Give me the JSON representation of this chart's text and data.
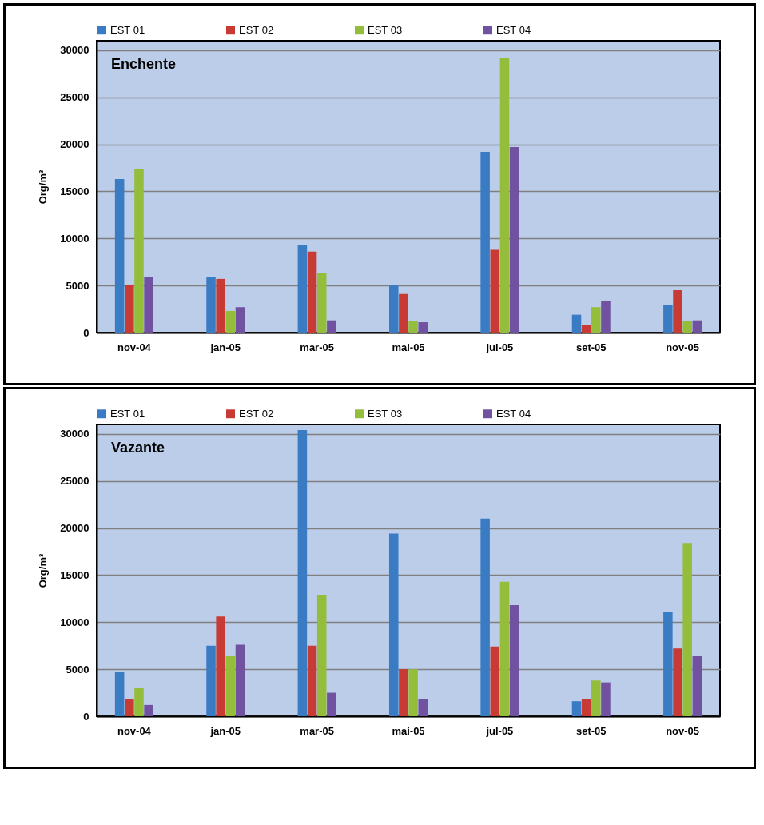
{
  "chart_data": [
    {
      "type": "bar",
      "title": "Enchente",
      "ylabel": "Org/m³",
      "categories": [
        "nov-04",
        "jan-05",
        "mar-05",
        "mai-05",
        "jul-05",
        "set-05",
        "nov-05"
      ],
      "series": [
        {
          "name": "EST 01",
          "color": "#3a7cc4",
          "values": [
            16300,
            5900,
            9300,
            5000,
            19200,
            1900,
            2900
          ]
        },
        {
          "name": "EST 02",
          "color": "#c83a34",
          "values": [
            5100,
            5700,
            8600,
            4100,
            8800,
            800,
            4500
          ]
        },
        {
          "name": "EST 03",
          "color": "#94bd3c",
          "values": [
            17400,
            2300,
            6300,
            1200,
            29200,
            2700,
            1200
          ]
        },
        {
          "name": "EST 04",
          "color": "#7152a0",
          "values": [
            5900,
            2700,
            1300,
            1100,
            19700,
            3400,
            1300
          ]
        }
      ],
      "ylim": [
        0,
        31000
      ],
      "yticks": [
        0,
        5000,
        10000,
        15000,
        20000,
        25000,
        30000
      ],
      "grid": "y",
      "legend": "top"
    },
    {
      "type": "bar",
      "title": "Vazante",
      "ylabel": "Org/m³",
      "categories": [
        "nov-04",
        "jan-05",
        "mar-05",
        "mai-05",
        "jul-05",
        "set-05",
        "nov-05"
      ],
      "series": [
        {
          "name": "EST 01",
          "color": "#3a7cc4",
          "values": [
            4700,
            7500,
            30400,
            19400,
            21000,
            1600,
            11100
          ]
        },
        {
          "name": "EST 02",
          "color": "#c83a34",
          "values": [
            1800,
            10600,
            7500,
            5000,
            7400,
            1800,
            7200
          ]
        },
        {
          "name": "EST 03",
          "color": "#94bd3c",
          "values": [
            3000,
            6400,
            12900,
            5000,
            14300,
            3800,
            18400
          ]
        },
        {
          "name": "EST 04",
          "color": "#7152a0",
          "values": [
            1200,
            7600,
            2500,
            1800,
            11800,
            3600,
            6400
          ]
        }
      ],
      "ylim": [
        0,
        31000
      ],
      "yticks": [
        0,
        5000,
        10000,
        15000,
        20000,
        25000,
        30000
      ],
      "grid": "y",
      "legend": "top"
    }
  ]
}
